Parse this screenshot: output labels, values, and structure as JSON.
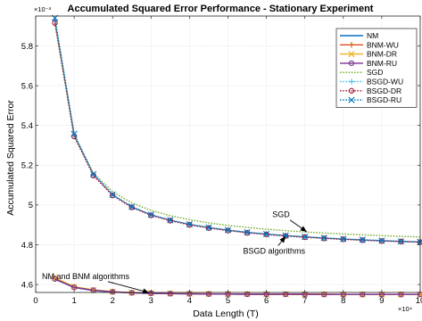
{
  "chart_data": {
    "type": "line",
    "title": "Accumulated Squared Error Performance - Stationary Experiment",
    "xlabel": "Data Length (T)",
    "ylabel": "Accumulated Squared Error",
    "x_multiplier": "×10⁴",
    "y_multiplier": "×10⁻³",
    "xlim": [
      0,
      10
    ],
    "ylim": [
      4.56,
      5.95
    ],
    "x_ticks": [
      0,
      1,
      2,
      3,
      4,
      5,
      6,
      7,
      8,
      9,
      10
    ],
    "x_tick_labels": [
      "0",
      "1",
      "2",
      "3",
      "4",
      "5",
      "6",
      "7",
      "8",
      "9",
      "10"
    ],
    "y_ticks": [
      4.6,
      4.8,
      5.0,
      5.2,
      5.4,
      5.6,
      5.8
    ],
    "y_tick_labels": [
      "4.6",
      "4.8",
      "5",
      "5.2",
      "5.4",
      "5.6",
      "5.8"
    ],
    "grid": true,
    "legend_position": "top-right",
    "x": [
      0.5,
      1,
      1.5,
      2,
      2.5,
      3,
      3.5,
      4,
      4.5,
      5,
      5.5,
      6,
      6.5,
      7,
      7.5,
      8,
      8.5,
      9,
      9.5,
      10
    ],
    "series": [
      {
        "name": "NM",
        "color": "#0072BD",
        "dash": "solid",
        "marker": "none",
        "values": [
          4.627,
          4.585,
          4.57,
          4.562,
          4.558,
          4.555,
          4.554,
          4.553,
          4.552,
          4.552,
          4.551,
          4.551,
          4.551,
          4.551,
          4.55,
          4.55,
          4.55,
          4.55,
          4.55,
          4.55
        ]
      },
      {
        "name": "BNM-WU",
        "color": "#D95319",
        "dash": "solid",
        "marker": "plus",
        "values": [
          4.632,
          4.588,
          4.572,
          4.564,
          4.559,
          4.556,
          4.555,
          4.554,
          4.553,
          4.552,
          4.552,
          4.551,
          4.551,
          4.551,
          4.551,
          4.55,
          4.55,
          4.55,
          4.55,
          4.55
        ]
      },
      {
        "name": "BNM-DR",
        "color": "#EDB120",
        "dash": "solid",
        "marker": "x",
        "values": [
          4.634,
          4.589,
          4.573,
          4.564,
          4.559,
          4.557,
          4.555,
          4.554,
          4.553,
          4.552,
          4.552,
          4.551,
          4.551,
          4.551,
          4.551,
          4.55,
          4.55,
          4.55,
          4.55,
          4.55
        ]
      },
      {
        "name": "BNM-RU",
        "color": "#7E2F8E",
        "dash": "solid",
        "marker": "circle",
        "values": [
          4.628,
          4.586,
          4.571,
          4.563,
          4.558,
          4.556,
          4.554,
          4.553,
          4.552,
          4.552,
          4.551,
          4.551,
          4.551,
          4.551,
          4.55,
          4.55,
          4.55,
          4.55,
          4.55,
          4.55
        ]
      },
      {
        "name": "SGD",
        "color": "#77AC30",
        "dash": "dotted",
        "marker": "none",
        "values": [
          5.92,
          5.35,
          5.16,
          5.067,
          5.01,
          4.973,
          4.946,
          4.926,
          4.91,
          4.897,
          4.887,
          4.878,
          4.871,
          4.864,
          4.859,
          4.854,
          4.85,
          4.846,
          4.842,
          4.839
        ]
      },
      {
        "name": "BSGD-WU",
        "color": "#4DBEEE",
        "dash": "dotted",
        "marker": "plus",
        "values": [
          5.93,
          5.353,
          5.152,
          5.05,
          4.99,
          4.95,
          4.923,
          4.902,
          4.886,
          4.873,
          4.862,
          4.853,
          4.846,
          4.839,
          4.834,
          4.829,
          4.824,
          4.82,
          4.817,
          4.814
        ]
      },
      {
        "name": "BSGD-DR",
        "color": "#A2142F",
        "dash": "dotted",
        "marker": "circle",
        "values": [
          5.915,
          5.345,
          5.148,
          5.048,
          4.988,
          4.948,
          4.921,
          4.9,
          4.884,
          4.871,
          4.86,
          4.852,
          4.844,
          4.838,
          4.832,
          4.827,
          4.823,
          4.819,
          4.816,
          4.813
        ]
      },
      {
        "name": "BSGD-RU",
        "color": "#0072BD",
        "dash": "dotted",
        "marker": "x",
        "values": [
          5.94,
          5.357,
          5.155,
          5.052,
          4.991,
          4.951,
          4.924,
          4.903,
          4.887,
          4.874,
          4.863,
          4.854,
          4.846,
          4.84,
          4.834,
          4.829,
          4.825,
          4.821,
          4.817,
          4.814
        ]
      }
    ],
    "annotations": [
      {
        "text": "SGD",
        "text_x": 6.38,
        "text_y": 4.938,
        "arrow_to_x": 7.05,
        "arrow_to_y": 4.865
      },
      {
        "text": "BSGD algorithms",
        "text_x": 6.2,
        "text_y": 4.755,
        "arrow_to_x": 6.5,
        "arrow_to_y": 4.842
      },
      {
        "text": "NM and BNM algorithms",
        "text_x": 1.3,
        "text_y": 4.628,
        "arrow_to_x": 2.95,
        "arrow_to_y": 4.559
      }
    ]
  }
}
